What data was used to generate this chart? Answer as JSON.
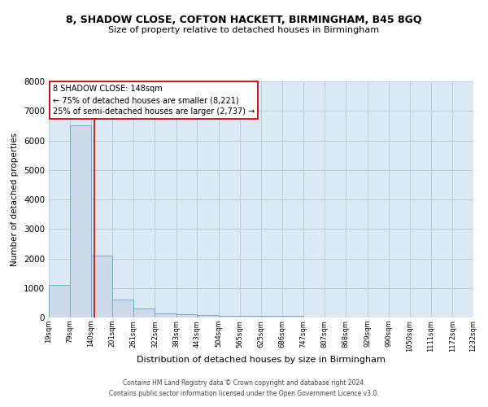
{
  "title": "8, SHADOW CLOSE, COFTON HACKETT, BIRMINGHAM, B45 8GQ",
  "subtitle": "Size of property relative to detached houses in Birmingham",
  "xlabel": "Distribution of detached houses by size in Birmingham",
  "ylabel": "Number of detached properties",
  "footer_line1": "Contains HM Land Registry data © Crown copyright and database right 2024.",
  "footer_line2": "Contains public sector information licensed under the Open Government Licence v3.0.",
  "annotation_title": "8 SHADOW CLOSE: 148sqm",
  "annotation_line1": "← 75% of detached houses are smaller (8,221)",
  "annotation_line2": "25% of semi-detached houses are larger (2,737) →",
  "red_line_x": 148,
  "bin_edges": [
    19,
    79,
    140,
    201,
    261,
    322,
    383,
    443,
    504,
    565,
    625,
    686,
    747,
    807,
    868,
    929,
    990,
    1050,
    1111,
    1172,
    1232
  ],
  "bar_heights": [
    1100,
    6500,
    2100,
    600,
    300,
    150,
    100,
    80,
    50,
    50,
    50,
    50,
    0,
    0,
    0,
    0,
    0,
    0,
    0,
    0
  ],
  "bar_color": "#ccdaea",
  "bar_edge_color": "#7aaac8",
  "red_line_color": "#cc0000",
  "grid_color": "#bccede",
  "background_color": "#dce8f2",
  "annotation_box_color": "#ffffff",
  "annotation_box_edge": "#cc0000",
  "ylim": [
    0,
    8000
  ],
  "yticks": [
    0,
    1000,
    2000,
    3000,
    4000,
    5000,
    6000,
    7000,
    8000
  ],
  "title_fontsize": 9,
  "subtitle_fontsize": 8,
  "ylabel_fontsize": 7.5,
  "xlabel_fontsize": 8,
  "ytick_fontsize": 7.5,
  "xtick_fontsize": 6,
  "footer_fontsize": 5.5,
  "annotation_fontsize": 7
}
